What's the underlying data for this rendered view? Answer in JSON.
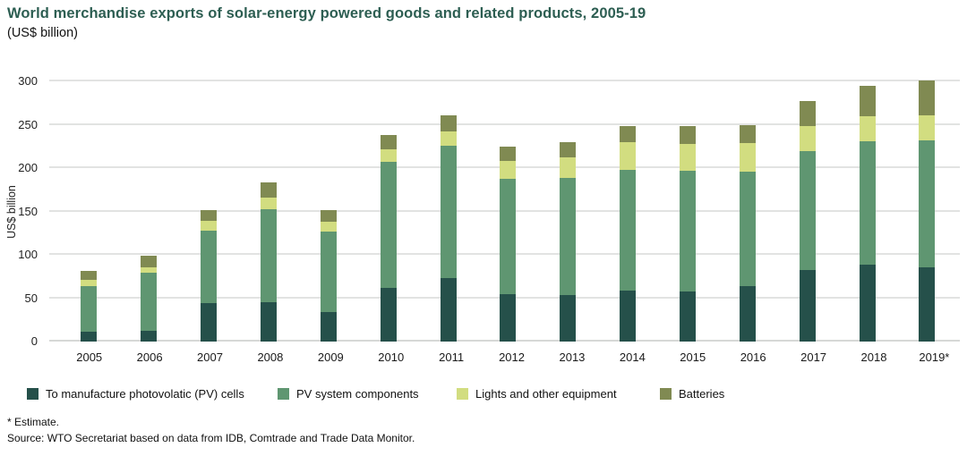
{
  "header": {
    "title": "World merchandise exports of solar-energy powered goods and related products, 2005-19",
    "subtitle": "(US$ billion)"
  },
  "footnotes": {
    "estimate": "* Estimate.",
    "source": "Source: WTO Secretariat based on data from IDB, Comtrade and Trade Data Monitor."
  },
  "colors": {
    "title_text": "#2d5e52",
    "gridline": "#e2e3e2",
    "series_dark_green": "#25504a",
    "series_medium_green": "#5f9671",
    "series_light_yellow_green": "#d2dd80",
    "series_olive": "#808a52"
  },
  "chart_data": {
    "type": "bar",
    "stacked": true,
    "title": "World merchandise exports of solar-energy powered goods and related products, 2005-19",
    "subtitle": "(US$ billion)",
    "ylabel": "US$ billion",
    "xlabel": "",
    "ylim": [
      0,
      300
    ],
    "yticks": [
      0,
      50,
      100,
      150,
      200,
      250,
      300
    ],
    "grid": true,
    "legend_position": "bottom",
    "categories": [
      "2005",
      "2006",
      "2007",
      "2008",
      "2009",
      "2010",
      "2011",
      "2012",
      "2013",
      "2014",
      "2015",
      "2016",
      "2017",
      "2018",
      "2019*"
    ],
    "series": [
      {
        "name": "To manufacture photovolatic (PV) cells",
        "color": "#25504a",
        "values": [
          11,
          12,
          44,
          45,
          34,
          62,
          73,
          55,
          54,
          59,
          58,
          64,
          82,
          89,
          86
        ]
      },
      {
        "name": "PV system components",
        "color": "#5f9671",
        "values": [
          53,
          67,
          84,
          108,
          93,
          145,
          153,
          133,
          135,
          139,
          139,
          132,
          138,
          142,
          146
        ]
      },
      {
        "name": "Lights and other equipment",
        "color": "#d2dd80",
        "values": [
          7,
          7,
          11,
          13,
          11,
          15,
          16,
          20,
          23,
          32,
          31,
          33,
          28,
          29,
          29
        ]
      },
      {
        "name": "Batteries",
        "color": "#808a52",
        "values": [
          11,
          13,
          13,
          18,
          14,
          16,
          19,
          17,
          18,
          18,
          21,
          21,
          29,
          35,
          40
        ]
      }
    ],
    "totals": [
      82,
      99,
      152,
      184,
      152,
      238,
      261,
      225,
      230,
      248,
      249,
      250,
      277,
      295,
      301
    ]
  }
}
